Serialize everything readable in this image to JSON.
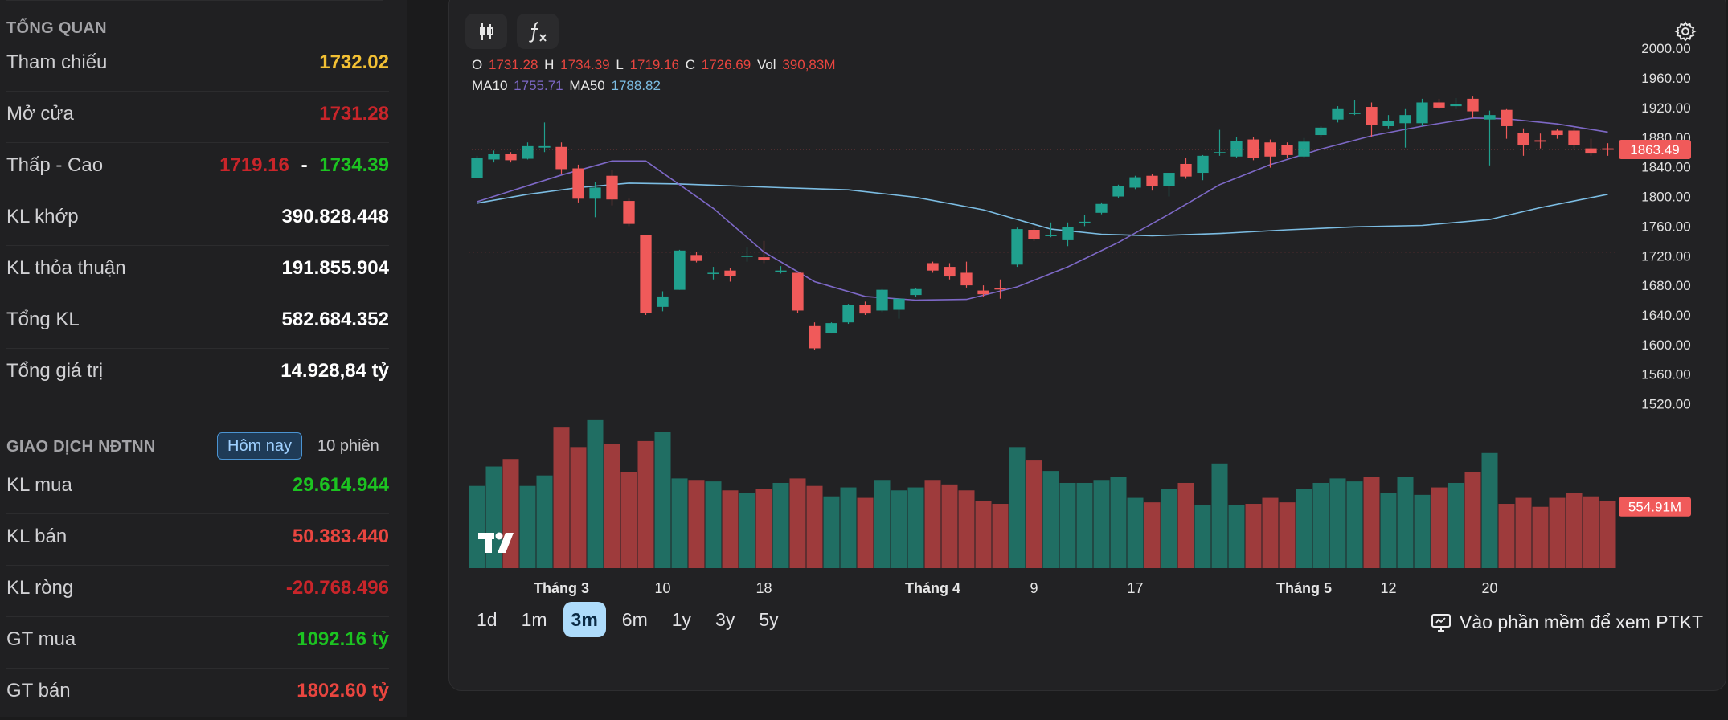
{
  "overview": {
    "title": "TỔNG QUAN",
    "rows": [
      {
        "label": "Tham chiếu",
        "value": "1732.02"
      },
      {
        "label": "Mở cửa",
        "value": "1731.28"
      },
      {
        "label": "Thấp - Cao",
        "low": "1719.16",
        "sep": "-",
        "high": "1734.39"
      },
      {
        "label": "KL khớp",
        "value": "390.828.448"
      },
      {
        "label": "KL thỏa thuận",
        "value": "191.855.904"
      },
      {
        "label": "Tổng KL",
        "value": "582.684.352"
      },
      {
        "label": "Tổng giá trị",
        "value": "14.928,84 tỷ"
      }
    ]
  },
  "foreign": {
    "title": "GIAO DỊCH NĐTNN",
    "tabs": [
      "Hôm nay",
      "10 phiên"
    ],
    "rows": [
      {
        "label": "KL mua",
        "value": "29.614.944"
      },
      {
        "label": "KL bán",
        "value": "50.383.440"
      },
      {
        "label": "KL ròng",
        "value": "-20.768.496"
      },
      {
        "label": "GT mua",
        "value": "1092.16 tỷ"
      },
      {
        "label": "GT bán",
        "value": "1802.60 tỷ"
      }
    ]
  },
  "legend": {
    "o_label": "O",
    "o": "1731.28",
    "h_label": "H",
    "h": "1734.39",
    "l_label": "L",
    "l": "1719.16",
    "c_label": "C",
    "c": "1726.69",
    "vol_label": "Vol",
    "vol": "390,83M",
    "ma10_label": "MA10",
    "ma10": "1755.71",
    "ma50_label": "MA50",
    "ma50": "1788.82"
  },
  "icons": {
    "candles": "candlestick-icon",
    "fx": "function-icon",
    "settings": "gear-icon",
    "logo": "tradingview-logo",
    "monitor": "monitor-icon"
  },
  "ranges": [
    "1d",
    "1m",
    "3m",
    "6m",
    "1y",
    "3y",
    "5y"
  ],
  "active_range": "3m",
  "ptkt_label": "Vào phần mềm để xem PTKT",
  "colors": {
    "up": "#20a08e",
    "down": "#f05a5a",
    "vol_up": "#206e63",
    "vol_down": "#9e3b3c",
    "ma10": "#7d68c6",
    "ma50": "#7cbde3",
    "ref_line": "#c9454a"
  },
  "chart_data": {
    "type": "candlestick",
    "y_ticks": [
      "1520.00",
      "1560.00",
      "1600.00",
      "1640.00",
      "1680.00",
      "1720.00",
      "1760.00",
      "1800.00",
      "1840.00",
      "1880.00",
      "1920.00",
      "1960.00",
      "2000.00"
    ],
    "ylim": [
      1500,
      2010
    ],
    "x_ticks": [
      "Tháng 3",
      "10",
      "18",
      "Tháng 4",
      "9",
      "17",
      "Tháng 5",
      "12",
      "20"
    ],
    "last_price_label": "1863.49",
    "last_volume_label": "554.91M",
    "reference_price": 1725,
    "candles": [
      {
        "o": 1825,
        "c": 1852,
        "h": 1855,
        "l": 1825,
        "v": 0.55
      },
      {
        "o": 1850,
        "c": 1857,
        "h": 1862,
        "l": 1846,
        "v": 0.68
      },
      {
        "o": 1857,
        "c": 1849,
        "h": 1860,
        "l": 1846,
        "v": 0.73
      },
      {
        "o": 1851,
        "c": 1868,
        "h": 1873,
        "l": 1850,
        "v": 0.55
      },
      {
        "o": 1866,
        "c": 1868,
        "h": 1900,
        "l": 1860,
        "v": 0.62
      },
      {
        "o": 1867,
        "c": 1837,
        "h": 1873,
        "l": 1830,
        "v": 0.94
      },
      {
        "o": 1838,
        "c": 1797,
        "h": 1843,
        "l": 1792,
        "v": 0.81
      },
      {
        "o": 1797,
        "c": 1812,
        "h": 1820,
        "l": 1772,
        "v": 0.99
      },
      {
        "o": 1828,
        "c": 1796,
        "h": 1836,
        "l": 1788,
        "v": 0.83
      },
      {
        "o": 1794,
        "c": 1763,
        "h": 1797,
        "l": 1760,
        "v": 0.64
      },
      {
        "o": 1748,
        "c": 1643,
        "h": 1748,
        "l": 1640,
        "v": 0.85
      },
      {
        "o": 1651,
        "c": 1665,
        "h": 1672,
        "l": 1645,
        "v": 0.91
      },
      {
        "o": 1674,
        "c": 1727,
        "h": 1728,
        "l": 1674,
        "v": 0.6
      },
      {
        "o": 1721,
        "c": 1713,
        "h": 1725,
        "l": 1711,
        "v": 0.59
      },
      {
        "o": 1697,
        "c": 1697,
        "h": 1705,
        "l": 1688,
        "v": 0.58
      },
      {
        "o": 1700,
        "c": 1693,
        "h": 1703,
        "l": 1685,
        "v": 0.52
      },
      {
        "o": 1719,
        "c": 1720,
        "h": 1731,
        "l": 1712,
        "v": 0.5
      },
      {
        "o": 1718,
        "c": 1714,
        "h": 1740,
        "l": 1710,
        "v": 0.53
      },
      {
        "o": 1700,
        "c": 1700,
        "h": 1706,
        "l": 1696,
        "v": 0.57
      },
      {
        "o": 1697,
        "c": 1646,
        "h": 1697,
        "l": 1643,
        "v": 0.6
      },
      {
        "o": 1625,
        "c": 1595,
        "h": 1630,
        "l": 1593,
        "v": 0.55
      },
      {
        "o": 1615,
        "c": 1629,
        "h": 1630,
        "l": 1615,
        "v": 0.48
      },
      {
        "o": 1630,
        "c": 1653,
        "h": 1655,
        "l": 1628,
        "v": 0.54
      },
      {
        "o": 1654,
        "c": 1642,
        "h": 1658,
        "l": 1640,
        "v": 0.47
      },
      {
        "o": 1646,
        "c": 1674,
        "h": 1675,
        "l": 1644,
        "v": 0.59
      },
      {
        "o": 1647,
        "c": 1662,
        "h": 1662,
        "l": 1635,
        "v": 0.52
      },
      {
        "o": 1667,
        "c": 1675,
        "h": 1676,
        "l": 1664,
        "v": 0.54
      },
      {
        "o": 1710,
        "c": 1700,
        "h": 1712,
        "l": 1697,
        "v": 0.59
      },
      {
        "o": 1705,
        "c": 1692,
        "h": 1710,
        "l": 1688,
        "v": 0.56
      },
      {
        "o": 1697,
        "c": 1680,
        "h": 1712,
        "l": 1677,
        "v": 0.52
      },
      {
        "o": 1673,
        "c": 1668,
        "h": 1680,
        "l": 1665,
        "v": 0.45
      },
      {
        "o": 1676,
        "c": 1675,
        "h": 1688,
        "l": 1662,
        "v": 0.43
      },
      {
        "o": 1708,
        "c": 1756,
        "h": 1758,
        "l": 1705,
        "v": 0.81
      },
      {
        "o": 1755,
        "c": 1742,
        "h": 1758,
        "l": 1740,
        "v": 0.72
      },
      {
        "o": 1748,
        "c": 1748,
        "h": 1765,
        "l": 1745,
        "v": 0.65
      },
      {
        "o": 1741,
        "c": 1759,
        "h": 1765,
        "l": 1733,
        "v": 0.57
      },
      {
        "o": 1766,
        "c": 1766,
        "h": 1775,
        "l": 1760,
        "v": 0.57
      },
      {
        "o": 1778,
        "c": 1790,
        "h": 1792,
        "l": 1776,
        "v": 0.59
      },
      {
        "o": 1800,
        "c": 1814,
        "h": 1816,
        "l": 1798,
        "v": 0.61
      },
      {
        "o": 1812,
        "c": 1826,
        "h": 1828,
        "l": 1810,
        "v": 0.47
      },
      {
        "o": 1828,
        "c": 1814,
        "h": 1830,
        "l": 1808,
        "v": 0.44
      },
      {
        "o": 1814,
        "c": 1832,
        "h": 1832,
        "l": 1800,
        "v": 0.53
      },
      {
        "o": 1844,
        "c": 1827,
        "h": 1852,
        "l": 1824,
        "v": 0.57
      },
      {
        "o": 1832,
        "c": 1855,
        "h": 1856,
        "l": 1822,
        "v": 0.42
      },
      {
        "o": 1860,
        "c": 1860,
        "h": 1890,
        "l": 1855,
        "v": 0.7
      },
      {
        "o": 1854,
        "c": 1875,
        "h": 1880,
        "l": 1852,
        "v": 0.42
      },
      {
        "o": 1877,
        "c": 1852,
        "h": 1880,
        "l": 1849,
        "v": 0.43
      },
      {
        "o": 1873,
        "c": 1854,
        "h": 1877,
        "l": 1839,
        "v": 0.47
      },
      {
        "o": 1870,
        "c": 1856,
        "h": 1873,
        "l": 1852,
        "v": 0.44
      },
      {
        "o": 1854,
        "c": 1874,
        "h": 1879,
        "l": 1852,
        "v": 0.53
      },
      {
        "o": 1883,
        "c": 1893,
        "h": 1895,
        "l": 1880,
        "v": 0.57
      },
      {
        "o": 1904,
        "c": 1918,
        "h": 1922,
        "l": 1900,
        "v": 0.6
      },
      {
        "o": 1913,
        "c": 1913,
        "h": 1930,
        "l": 1910,
        "v": 0.58
      },
      {
        "o": 1921,
        "c": 1897,
        "h": 1927,
        "l": 1880,
        "v": 0.61
      },
      {
        "o": 1895,
        "c": 1902,
        "h": 1910,
        "l": 1892,
        "v": 0.5
      },
      {
        "o": 1899,
        "c": 1910,
        "h": 1918,
        "l": 1866,
        "v": 0.61
      },
      {
        "o": 1899,
        "c": 1927,
        "h": 1932,
        "l": 1895,
        "v": 0.49
      },
      {
        "o": 1927,
        "c": 1920,
        "h": 1932,
        "l": 1918,
        "v": 0.54
      },
      {
        "o": 1922,
        "c": 1925,
        "h": 1933,
        "l": 1918,
        "v": 0.57
      },
      {
        "o": 1932,
        "c": 1915,
        "h": 1935,
        "l": 1906,
        "v": 0.64
      },
      {
        "o": 1904,
        "c": 1910,
        "h": 1916,
        "l": 1842,
        "v": 0.77
      },
      {
        "o": 1917,
        "c": 1895,
        "h": 1918,
        "l": 1878,
        "v": 0.43
      },
      {
        "o": 1886,
        "c": 1870,
        "h": 1892,
        "l": 1855,
        "v": 0.47
      },
      {
        "o": 1876,
        "c": 1874,
        "h": 1885,
        "l": 1865,
        "v": 0.41
      },
      {
        "o": 1889,
        "c": 1883,
        "h": 1891,
        "l": 1878,
        "v": 0.47
      },
      {
        "o": 1889,
        "c": 1870,
        "h": 1893,
        "l": 1865,
        "v": 0.5
      },
      {
        "o": 1865,
        "c": 1858,
        "h": 1878,
        "l": 1855,
        "v": 0.48
      },
      {
        "o": 1865,
        "c": 1863,
        "h": 1872,
        "l": 1855,
        "v": 0.45
      }
    ],
    "ma10_anchor": [
      [
        0,
        1793
      ],
      [
        5,
        1829
      ],
      [
        8,
        1848
      ],
      [
        10,
        1848
      ],
      [
        14,
        1784
      ],
      [
        17,
        1725
      ],
      [
        20,
        1685
      ],
      [
        23,
        1665
      ],
      [
        26,
        1660
      ],
      [
        29,
        1661
      ],
      [
        32,
        1678
      ],
      [
        35,
        1705
      ],
      [
        38,
        1738
      ],
      [
        41,
        1776
      ],
      [
        44,
        1816
      ],
      [
        47,
        1843
      ],
      [
        50,
        1864
      ],
      [
        53,
        1882
      ],
      [
        56,
        1895
      ],
      [
        59,
        1906
      ],
      [
        61,
        1905
      ],
      [
        64,
        1898
      ],
      [
        67,
        1887
      ]
    ],
    "ma50_anchor": [
      [
        0,
        1791
      ],
      [
        3,
        1803
      ],
      [
        6,
        1812
      ],
      [
        9,
        1818
      ],
      [
        12,
        1817
      ],
      [
        18,
        1812
      ],
      [
        22,
        1809
      ],
      [
        26,
        1799
      ],
      [
        30,
        1782
      ],
      [
        34,
        1756
      ],
      [
        37,
        1749
      ],
      [
        40,
        1747
      ],
      [
        44,
        1750
      ],
      [
        48,
        1755
      ],
      [
        52,
        1759
      ],
      [
        56,
        1761
      ],
      [
        60,
        1769
      ],
      [
        63,
        1785
      ],
      [
        67,
        1803
      ]
    ]
  }
}
